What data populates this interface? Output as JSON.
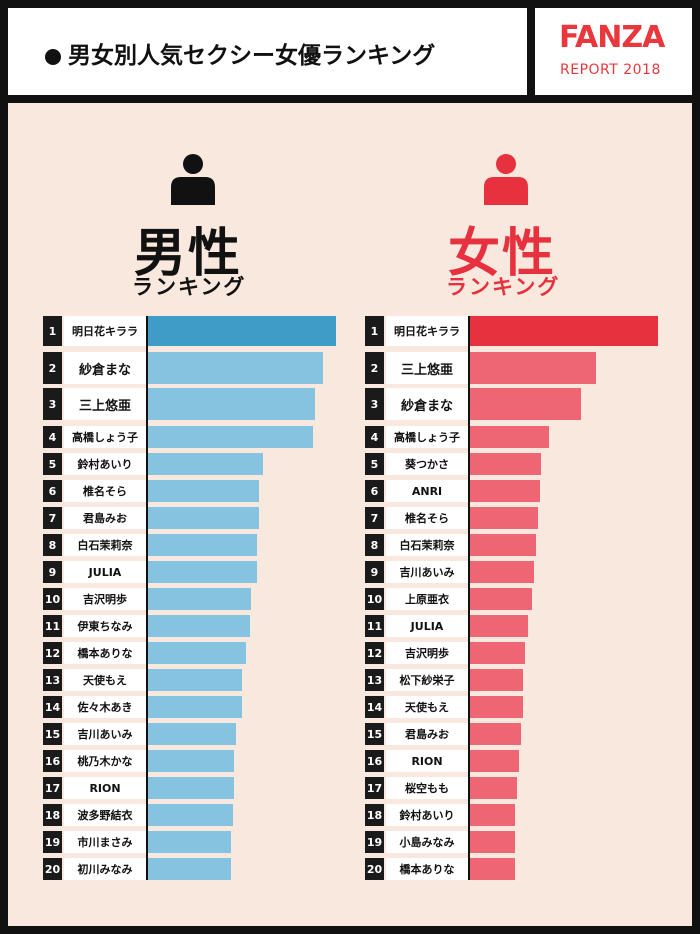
{
  "header": {
    "title": "男女別人気セクシー女優ランキング",
    "brand": "FANZA",
    "brand_sub": "REPORT 2018"
  },
  "colors": {
    "male_top": "#3f9cc7",
    "male": "#86c3e0",
    "female_top": "#e8313f",
    "female": "#ee6674",
    "female_icon": "#e8313f",
    "male_icon": "#111111"
  },
  "male": {
    "heading": "男性",
    "subheading": "ランキング",
    "icon": "person-icon"
  },
  "female": {
    "heading": "女性",
    "subheading": "ランキング",
    "icon": "person-icon"
  },
  "chart_data": [
    {
      "type": "bar",
      "orientation": "horizontal",
      "title": "男性 ランキング",
      "categories": [
        "明日花キララ",
        "紗倉まな",
        "三上悠亜",
        "高橋しょう子",
        "鈴村あいり",
        "椎名そら",
        "君島みお",
        "白石茉莉奈",
        "JULIA",
        "吉沢明歩",
        "伊東ちなみ",
        "橋本ありな",
        "天使もえ",
        "佐々木あき",
        "吉川あいみ",
        "桃乃木かな",
        "RION",
        "波多野結衣",
        "市川まさみ",
        "初川みなみ"
      ],
      "ranks": [
        1,
        2,
        3,
        4,
        5,
        6,
        7,
        8,
        9,
        10,
        11,
        12,
        13,
        14,
        15,
        16,
        17,
        18,
        19,
        20
      ],
      "values": [
        100,
        93,
        89,
        88,
        61,
        59,
        59,
        58,
        58,
        55,
        54,
        52,
        50,
        50,
        47,
        46,
        46,
        45,
        44,
        44
      ],
      "value_scale": "relative (top = 100)"
    },
    {
      "type": "bar",
      "orientation": "horizontal",
      "title": "女性 ランキング",
      "categories": [
        "明日花キララ",
        "三上悠亜",
        "紗倉まな",
        "高橋しょう子",
        "葵つかさ",
        "ANRI",
        "椎名そら",
        "白石茉莉奈",
        "吉川あいみ",
        "上原亜衣",
        "JULIA",
        "吉沢明歩",
        "松下紗栄子",
        "天使もえ",
        "君島みお",
        "RION",
        "桜空もも",
        "鈴村あいり",
        "小島みなみ",
        "橋本ありな"
      ],
      "ranks": [
        1,
        2,
        3,
        4,
        5,
        6,
        7,
        8,
        9,
        10,
        11,
        12,
        13,
        14,
        15,
        16,
        17,
        18,
        19,
        20
      ],
      "values": [
        100,
        67,
        59,
        42,
        38,
        37,
        36,
        35,
        34,
        33,
        31,
        29,
        28,
        28,
        27,
        26,
        25,
        24,
        24,
        24
      ],
      "value_scale": "relative (top = 100)"
    }
  ]
}
